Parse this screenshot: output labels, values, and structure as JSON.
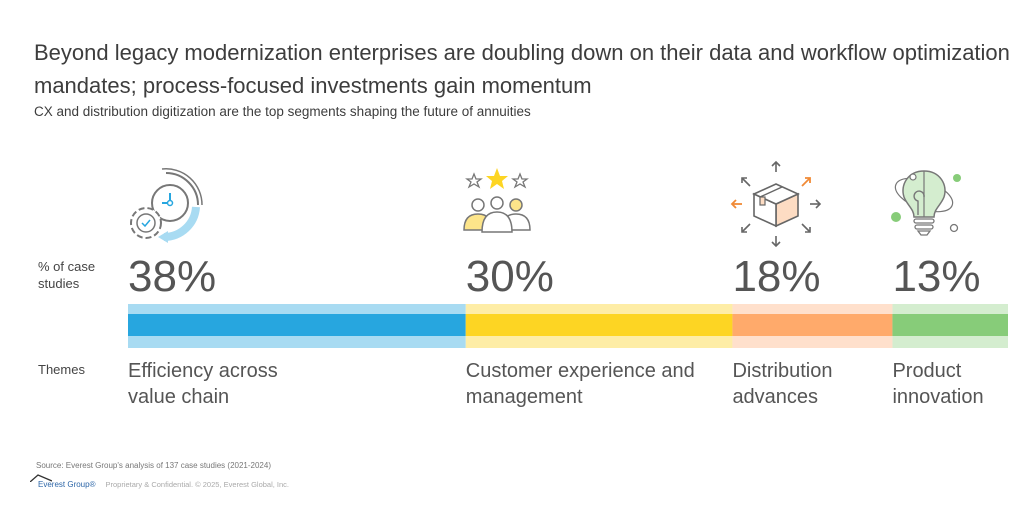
{
  "title": "Beyond legacy modernization enterprises are doubling down on their data and workflow optimization mandates; process-focused investments gain momentum",
  "subtitle": "CX and distribution digitization are the top segments shaping the future of annuities",
  "row_labels": {
    "percent": "% of case studies",
    "themes": "Themes"
  },
  "chart_data": {
    "type": "bar",
    "orientation": "horizontal-stacked",
    "title": "Beyond legacy modernization enterprises are doubling down on their data and workflow optimization mandates; process-focused investments gain momentum",
    "subtitle": "CX and distribution digitization are the top segments shaping the future of annuities",
    "ylabel": "% of case studies",
    "xlabel": "Themes",
    "categories": [
      "Efficiency across value chain",
      "Customer experience and management",
      "Distribution advances",
      "Product innovation"
    ],
    "values": [
      38,
      30,
      18,
      13
    ],
    "value_labels": [
      "38%",
      "30%",
      "18%",
      "13%"
    ],
    "colors": [
      "#27a6df",
      "#fdd523",
      "#ffaa6b",
      "#87cc79"
    ],
    "light_colors": [
      "#a8dbf2",
      "#feeda6",
      "#ffe0cc",
      "#d4edcf"
    ],
    "icons": [
      "clock-gear-icon",
      "customer-rating-icon",
      "package-distribution-icon",
      "lightbulb-innovation-icon"
    ],
    "grid": false,
    "legend": "none"
  },
  "source": "Source: Everest Group's analysis of 137 case studies (2021-2024)",
  "footer": {
    "logo": "Everest Group®",
    "text": "Proprietary & Confidential. © 2025, Everest Global, Inc."
  }
}
